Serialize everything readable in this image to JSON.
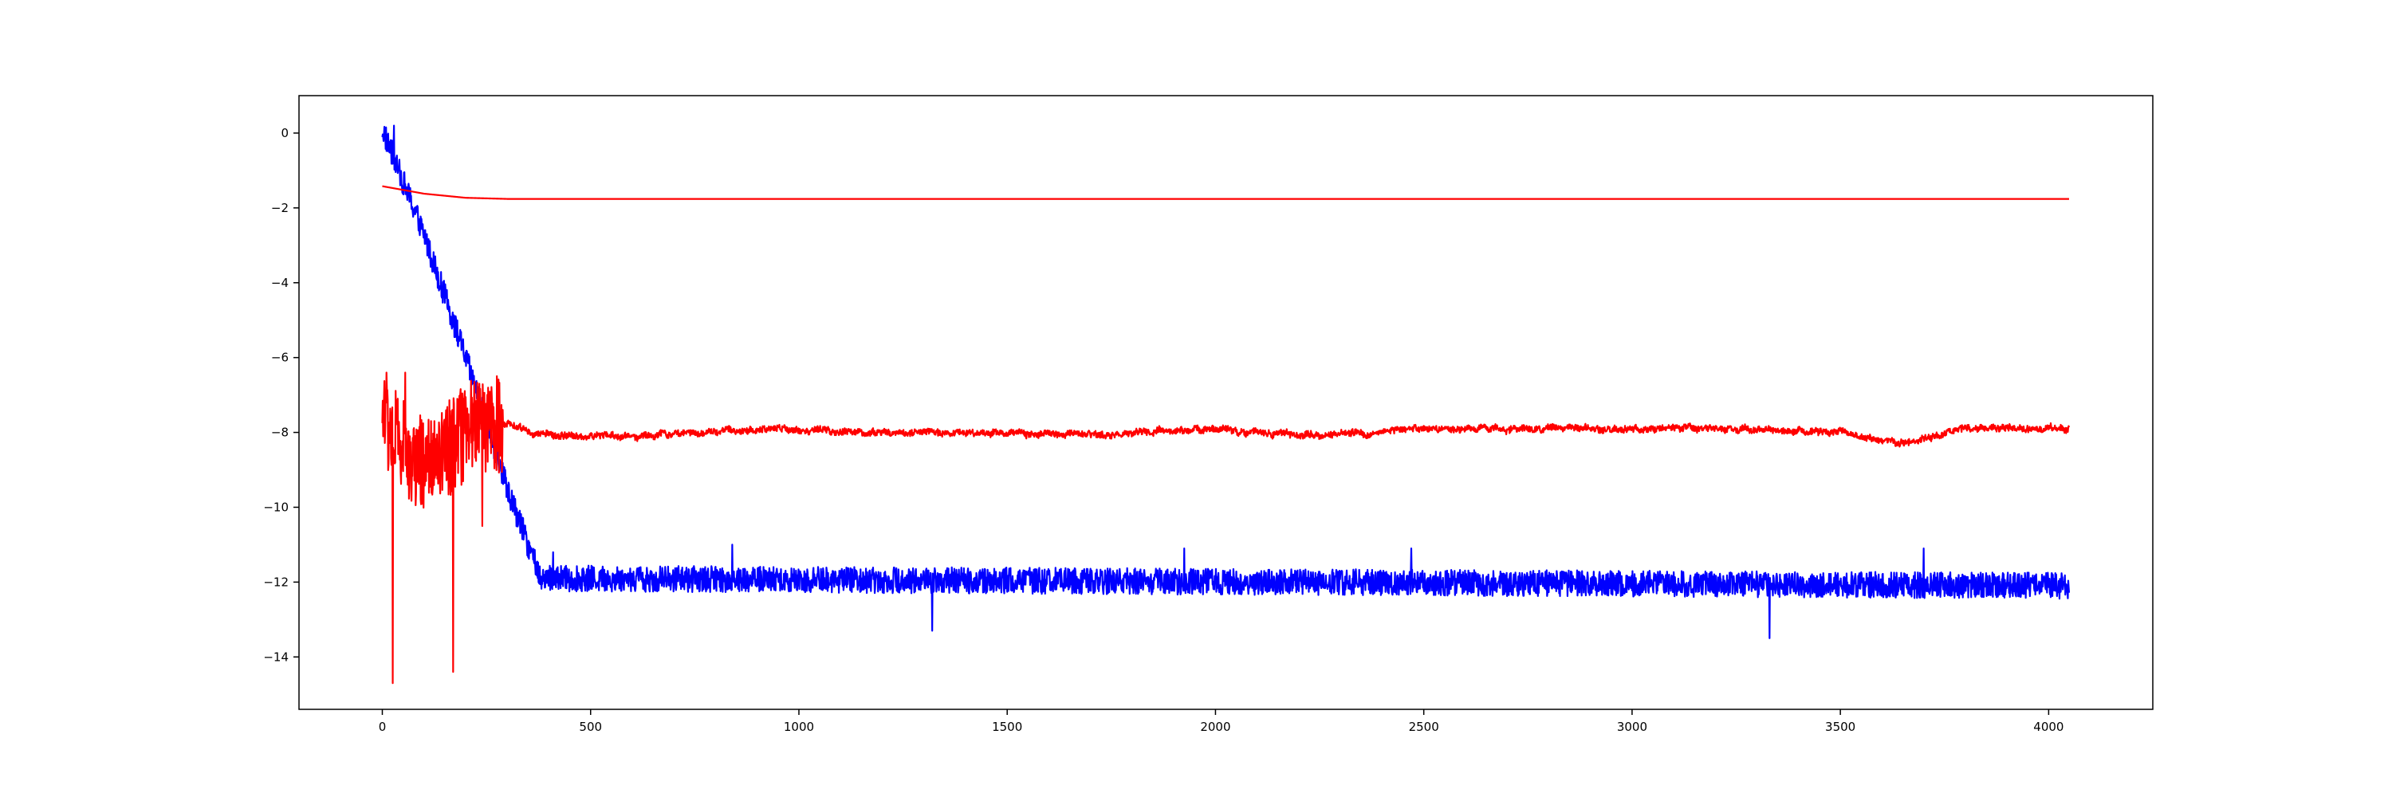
{
  "chart_data": {
    "type": "line",
    "title": "",
    "xlabel": "",
    "ylabel": "",
    "xlim": [
      -200,
      4250
    ],
    "ylim": [
      -15.4,
      1.0
    ],
    "xticks": [
      0,
      500,
      1000,
      1500,
      2000,
      2500,
      3000,
      3500,
      4000
    ],
    "yticks": [
      0,
      -2,
      -4,
      -6,
      -8,
      -10,
      -12,
      -14
    ],
    "grid": false,
    "legend": "none",
    "x_points": 4050,
    "series": [
      {
        "color": "#0000ff",
        "segments": [
          {
            "x": [
              0,
              100,
              200,
              300,
              380,
              4050
            ],
            "y": [
              0.1,
              -2.7,
              -6.0,
              -9.5,
              -11.9,
              -12.1
            ]
          }
        ],
        "noise_amplitude": 0.35,
        "spikes": [
          [
            28,
            0.2
          ],
          [
            410,
            -11.2
          ],
          [
            840,
            -11.0
          ],
          [
            1320,
            -13.3
          ],
          [
            1925,
            -11.1
          ],
          [
            2470,
            -11.1
          ],
          [
            3330,
            -13.5
          ],
          [
            3700,
            -11.1
          ]
        ]
      },
      {
        "color": "#ff0000",
        "segments": [
          {
            "x": [
              0,
              100,
              200,
              300,
              4050
            ],
            "y": [
              -1.42,
              -1.62,
              -1.73,
              -1.76,
              -1.76
            ]
          }
        ],
        "noise_amplitude": 0.0,
        "spikes": []
      },
      {
        "color": "#ff0000",
        "segments": [
          {
            "x": [
              0,
              60,
              120,
              180,
              230,
              260,
              300,
              360,
              420,
              600,
              750,
              950,
              1100,
              1500,
              1700,
              2000,
              2250,
              2500,
              2800,
              3000,
              3300,
              3500,
              3650,
              3800,
              4050
            ],
            "y": [
              -7.6,
              -8.6,
              -8.9,
              -8.3,
              -7.6,
              -7.8,
              -7.8,
              -8.0,
              -8.1,
              -8.1,
              -8.0,
              -7.9,
              -8.0,
              -8.0,
              -8.1,
              -7.9,
              -8.1,
              -7.9,
              -7.9,
              -7.9,
              -7.9,
              -8.0,
              -8.3,
              -7.9,
              -7.9
            ]
          }
        ],
        "noise_amplitude": 0.08,
        "early_noise_amplitude": 1.3,
        "early_noise_until": 290,
        "spikes": [
          [
            10,
            -6.4
          ],
          [
            25,
            -14.7
          ],
          [
            55,
            -6.4
          ],
          [
            170,
            -14.4
          ],
          [
            180,
            -7.1
          ],
          [
            240,
            -10.5
          ]
        ]
      }
    ]
  }
}
